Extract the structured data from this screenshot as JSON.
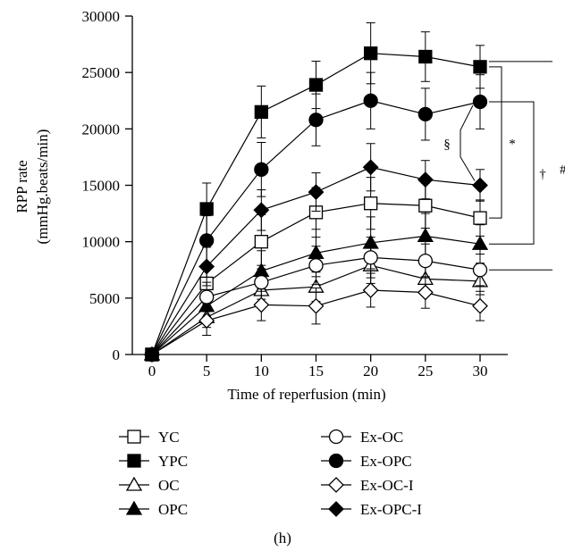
{
  "chart_data": {
    "type": "line",
    "panel_label": "(h)",
    "xlabel": "Time of reperfusion (min)",
    "ylabel_line1": "RPP rate",
    "ylabel_line2": "(mmHg.beats/min)",
    "x": [
      0,
      5,
      10,
      15,
      20,
      25,
      30
    ],
    "x_ticks": [
      "0",
      "5",
      "10",
      "15",
      "20",
      "25",
      "30"
    ],
    "xlim": [
      0,
      30
    ],
    "ylim": [
      0,
      30000
    ],
    "y_ticks": [
      "0",
      "5000",
      "10000",
      "15000",
      "20000",
      "25000",
      "30000"
    ],
    "grid": false,
    "legend_position": "bottom",
    "series": [
      {
        "name": "YC",
        "marker": "square",
        "filled": false,
        "values": [
          0,
          6300,
          10000,
          12600,
          13400,
          13200,
          12100
        ],
        "errors": [
          0,
          1800,
          2400,
          2200,
          2300,
          2000,
          1600
        ]
      },
      {
        "name": "YPC",
        "marker": "square",
        "filled": true,
        "values": [
          0,
          12900,
          21500,
          23900,
          26700,
          26400,
          25500
        ],
        "errors": [
          0,
          2300,
          2300,
          2100,
          2700,
          2200,
          1900
        ]
      },
      {
        "name": "OC",
        "marker": "triangle",
        "filled": false,
        "values": [
          0,
          3300,
          5700,
          6000,
          7900,
          6700,
          6500
        ],
        "errors": [
          0,
          900,
          1200,
          1300,
          1600,
          1300,
          1200
        ]
      },
      {
        "name": "OPC",
        "marker": "triangle",
        "filled": true,
        "values": [
          0,
          4300,
          7400,
          9000,
          9900,
          10500,
          9800
        ],
        "errors": [
          0,
          1200,
          1800,
          2100,
          2300,
          2000,
          1700
        ]
      },
      {
        "name": "Ex-OC",
        "marker": "circle",
        "filled": false,
        "values": [
          0,
          5100,
          6400,
          7900,
          8600,
          8300,
          7500
        ],
        "errors": [
          0,
          1300,
          1500,
          1700,
          1800,
          1500,
          1400
        ]
      },
      {
        "name": "Ex-OPC",
        "marker": "circle",
        "filled": true,
        "values": [
          0,
          10100,
          16400,
          20800,
          22500,
          21300,
          22400
        ],
        "errors": [
          0,
          2200,
          2400,
          2300,
          2500,
          2300,
          2400
        ]
      },
      {
        "name": "Ex-OC-I",
        "marker": "diamond",
        "filled": false,
        "values": [
          0,
          3000,
          4400,
          4300,
          5700,
          5500,
          4300
        ],
        "errors": [
          0,
          1300,
          1400,
          1600,
          1500,
          1400,
          1300
        ]
      },
      {
        "name": "Ex-OPC-I",
        "marker": "diamond",
        "filled": true,
        "values": [
          0,
          7800,
          12800,
          14400,
          16600,
          15500,
          15000
        ],
        "errors": [
          0,
          1700,
          1800,
          1700,
          2100,
          1700,
          1400
        ]
      }
    ],
    "significance_brackets": [
      {
        "symbol": "§",
        "from": "Ex-OPC",
        "to": "Ex-OPC-I"
      },
      {
        "symbol": "*",
        "from": "YPC",
        "to": "YC"
      },
      {
        "symbol": "†",
        "from": "Ex-OPC",
        "to": "OPC"
      },
      {
        "symbol": "#",
        "from": "YPC",
        "to": "Ex-OC"
      }
    ]
  }
}
